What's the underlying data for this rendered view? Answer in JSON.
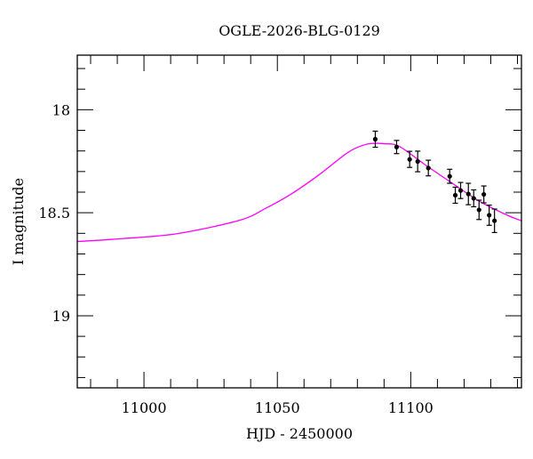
{
  "chart_data": {
    "type": "scatter",
    "title": "OGLE-2026-BLG-0129",
    "xlabel": "HJD - 2450000",
    "ylabel": "I magnitude",
    "xlim": [
      10975,
      11141.5
    ],
    "ylim": [
      19.35,
      17.735
    ],
    "y_inverted": true,
    "x_major_ticks": [
      11000,
      11050,
      11100
    ],
    "x_tick_labels": [
      "11000",
      "11050",
      "11100"
    ],
    "x_minor_step": 10,
    "y_major_ticks": [
      18,
      18.5,
      19
    ],
    "y_tick_labels": [
      "18",
      "18.5",
      "19"
    ],
    "y_minor_step": 0.1,
    "grid": false,
    "colors": {
      "model": "#ff00ff",
      "points": "#000000"
    },
    "series": [
      {
        "name": "data",
        "kind": "errorbar",
        "x": [
          11086.7,
          11094.7,
          11099.6,
          11102.6,
          11106.6,
          11114.6,
          11116.7,
          11118.7,
          11121.6,
          11123.6,
          11125.6,
          11127.4,
          11129.4,
          11131.4
        ],
        "y": [
          18.143,
          18.181,
          18.241,
          18.251,
          18.283,
          18.323,
          18.415,
          18.392,
          18.409,
          18.43,
          18.486,
          18.411,
          18.512,
          18.539
        ],
        "yerr": [
          0.039,
          0.032,
          0.039,
          0.05,
          0.038,
          0.034,
          0.039,
          0.039,
          0.052,
          0.041,
          0.047,
          0.041,
          0.049,
          0.057
        ]
      },
      {
        "name": "model",
        "kind": "line",
        "x": [
          10975,
          10992.3,
          11012.3,
          11035.7,
          11045.7,
          11055.7,
          11065.7,
          11075.7,
          11080.5,
          11085,
          11090,
          11095.7,
          11105.7,
          11115.7,
          11125.7,
          11135.7,
          11141.5
        ],
        "y": [
          18.64,
          18.625,
          18.602,
          18.537,
          18.478,
          18.405,
          18.315,
          18.214,
          18.18,
          18.164,
          18.165,
          18.178,
          18.27,
          18.358,
          18.444,
          18.509,
          18.539
        ]
      }
    ]
  }
}
